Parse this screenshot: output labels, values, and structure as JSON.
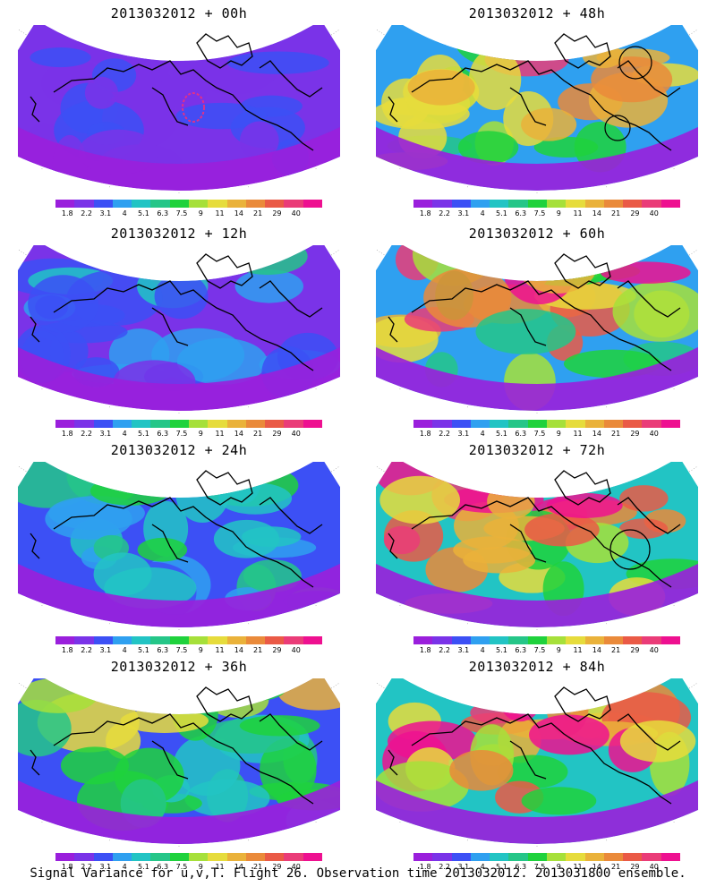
{
  "caption": "Signal Variance for u,v,T. Flight 26. Observation time 2013032012. 2013031800 ensemble.",
  "colorbar": {
    "colors": [
      "#9a1fdc",
      "#7a33e8",
      "#3c50f5",
      "#2fa0f0",
      "#22c4c4",
      "#25c688",
      "#1fd23c",
      "#a6e03a",
      "#e6dc3c",
      "#eab23a",
      "#ea8a3a",
      "#ea5a46",
      "#ea3c78",
      "#ee1090"
    ],
    "labels": [
      "1.8",
      "2.2",
      "3.1",
      "4",
      "5.1",
      "6.3",
      "7.5",
      "9",
      "11",
      "14",
      "21",
      "29",
      "40"
    ]
  },
  "panels": [
    {
      "title": "2013032012 + 00h",
      "level": 0.12,
      "circles": [],
      "ellipse": true
    },
    {
      "title": "2013032012 + 48h",
      "level": 0.62,
      "circles": [
        [
          290,
          42,
          18
        ],
        [
          270,
          115,
          14
        ]
      ],
      "ellipse": false
    },
    {
      "title": "2013032012 + 12h",
      "level": 0.22,
      "circles": [],
      "ellipse": false
    },
    {
      "title": "2013032012 + 60h",
      "level": 0.72,
      "circles": [],
      "ellipse": false
    },
    {
      "title": "2013032012 + 24h",
      "level": 0.35,
      "circles": [],
      "ellipse": false
    },
    {
      "title": "2013032012 + 72h",
      "level": 0.8,
      "circles": [
        [
          284,
          98,
          22
        ]
      ],
      "ellipse": false
    },
    {
      "title": "2013032012 + 36h",
      "level": 0.45,
      "circles": [],
      "ellipse": false
    },
    {
      "title": "2013032012 + 84h",
      "level": 0.85,
      "circles": [],
      "ellipse": false
    }
  ]
}
